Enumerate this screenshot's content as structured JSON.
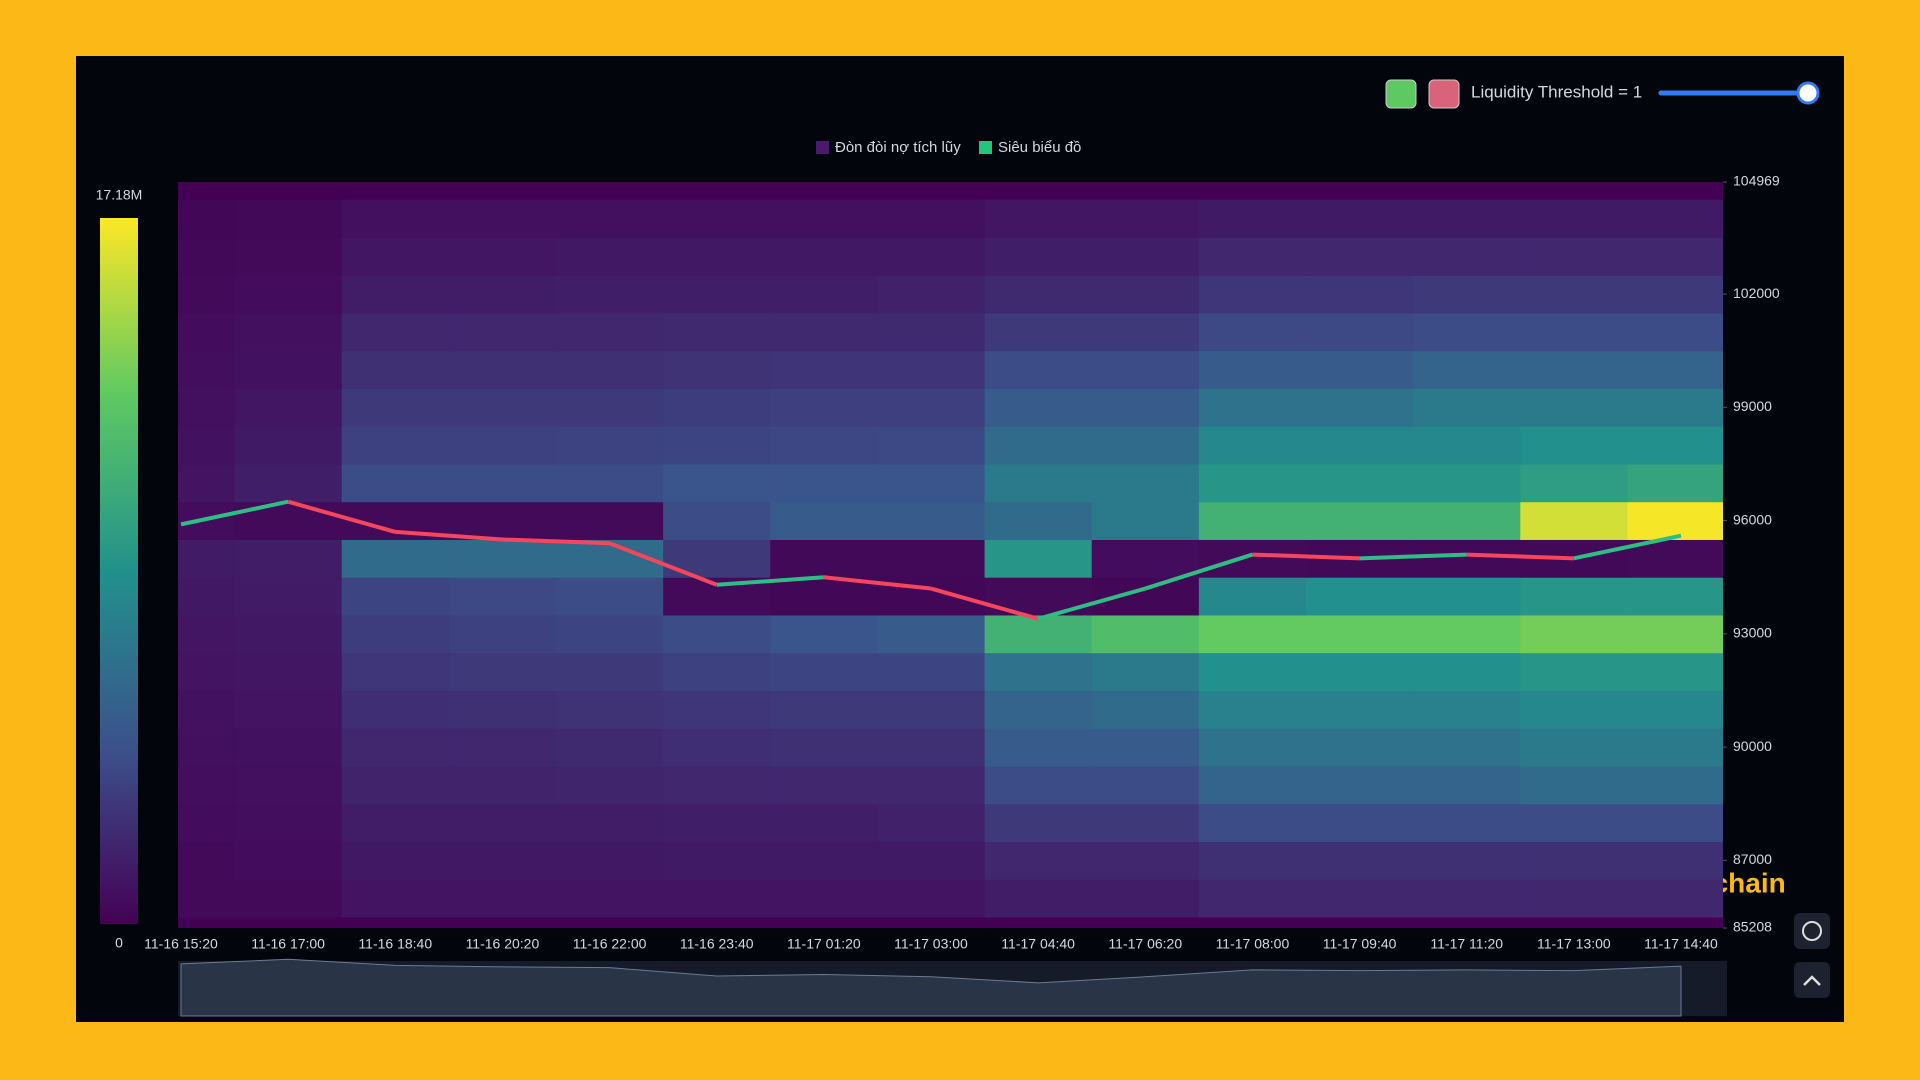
{
  "chart_data": {
    "type": "heatmap",
    "threshold_label": "Liquidity Threshold = 1",
    "watermark": "@az_blockchain",
    "x": [
      "11-16 15:20",
      "11-16 17:00",
      "11-16 18:40",
      "11-16 20:20",
      "11-16 22:00",
      "11-16 23:40",
      "11-17 01:20",
      "11-17 03:00",
      "11-17 04:40",
      "11-17 06:20",
      "11-17 08:00",
      "11-17 09:40",
      "11-17 11:20",
      "11-17 13:00",
      "11-17 14:40"
    ],
    "ylim": [
      85208,
      104969
    ],
    "yticks": [
      85208,
      87000,
      90000,
      93000,
      96000,
      99000,
      102000,
      104969
    ],
    "clim": [
      0,
      17.18
    ],
    "cticks": [
      0,
      {
        "value": 17.18,
        "label": "17.18M"
      }
    ],
    "colorscale": [
      "#440154",
      "#3b528b",
      "#21918c",
      "#5ec962",
      "#fde725"
    ],
    "up_color": "#2ebd85",
    "down_color": "#f6465d",
    "series": [
      {
        "name": "Đòn đòi nợ tích lũy",
        "color": "#4a1a6b",
        "levels": [
          86000,
          87000,
          88000,
          89000,
          90000,
          91000,
          92000,
          93000,
          94000,
          95000,
          96000,
          97000,
          98000,
          99000,
          100000,
          101000,
          102000,
          103000,
          104000
        ],
        "z": [
          [
            0.5,
            0.5,
            1,
            1,
            1,
            1,
            1,
            1,
            1.5,
            1.5,
            2,
            2,
            2,
            2,
            2
          ],
          [
            0.5,
            0.6,
            1.2,
            1.2,
            1.2,
            1.3,
            1.3,
            1.3,
            2,
            2,
            2.5,
            2.5,
            2.5,
            2.5,
            2.5
          ],
          [
            0.6,
            0.7,
            1.5,
            1.5,
            1.5,
            1.6,
            1.6,
            1.7,
            3,
            3,
            4,
            4,
            4,
            4,
            4
          ],
          [
            0.7,
            0.8,
            1.8,
            1.8,
            1.9,
            2,
            2,
            2,
            4,
            4,
            5.5,
            5.5,
            5.5,
            6,
            6
          ],
          [
            0.8,
            0.9,
            2,
            2,
            2.2,
            2.4,
            2.5,
            2.5,
            5,
            5,
            6.5,
            6.5,
            6.5,
            7,
            7
          ],
          [
            0.9,
            1,
            2.4,
            2.5,
            2.6,
            2.8,
            3,
            3,
            5.5,
            6,
            7.5,
            7.5,
            7.5,
            8,
            8
          ],
          [
            1,
            1.1,
            2.8,
            3,
            3,
            3.4,
            3.6,
            3.6,
            6.5,
            7,
            8.5,
            8.5,
            8.5,
            9,
            9
          ],
          [
            1.1,
            1.2,
            3.2,
            3.4,
            3.6,
            4,
            4.5,
            5,
            11,
            12,
            13,
            13,
            13,
            13.5,
            13.5
          ],
          [
            1.2,
            1.4,
            3.6,
            3.8,
            4,
            0.5,
            0.3,
            0.3,
            0.5,
            0.3,
            8,
            8.5,
            8.5,
            9,
            9
          ],
          [
            1.4,
            1.5,
            6,
            6,
            6,
            3,
            0.4,
            0.4,
            9,
            0.6,
            0.5,
            0.4,
            0.4,
            0.4,
            0.5
          ],
          [
            0.6,
            0.5,
            0.5,
            0.5,
            0.5,
            4,
            5,
            5,
            6,
            7,
            11,
            11,
            11,
            16,
            17
          ],
          [
            1,
            1.6,
            4,
            4,
            4,
            4.5,
            4.5,
            4.5,
            7,
            7,
            9,
            9,
            9,
            9.5,
            10
          ],
          [
            0.9,
            1.3,
            3.4,
            3.4,
            3.5,
            3.6,
            3.7,
            3.8,
            6,
            6,
            8,
            8,
            8,
            8.5,
            8.5
          ],
          [
            0.8,
            1.1,
            3,
            3,
            3,
            3.2,
            3.3,
            3.3,
            5,
            5,
            6.5,
            6.5,
            7,
            7,
            7
          ],
          [
            0.7,
            0.9,
            2.5,
            2.5,
            2.5,
            2.6,
            2.7,
            2.7,
            4,
            4,
            5,
            5,
            5.5,
            5.5,
            5.5
          ],
          [
            0.6,
            0.8,
            2,
            2,
            2,
            2.1,
            2.1,
            2.2,
            3,
            3,
            3.8,
            3.8,
            4,
            4,
            4
          ],
          [
            0.5,
            0.6,
            1.5,
            1.5,
            1.6,
            1.6,
            1.6,
            1.7,
            2.2,
            2.2,
            2.8,
            2.8,
            3,
            3,
            3
          ],
          [
            0.4,
            0.5,
            1.1,
            1.1,
            1.2,
            1.2,
            1.2,
            1.2,
            1.6,
            1.6,
            2,
            2,
            2,
            2,
            2
          ],
          [
            0.3,
            0.4,
            0.8,
            0.8,
            0.8,
            0.8,
            0.8,
            0.8,
            1.1,
            1.1,
            1.3,
            1.3,
            1.3,
            1.3,
            1.3
          ]
        ]
      },
      {
        "name": "Siêu biểu đồ",
        "color": "#20c77a",
        "values": [
          95900,
          96500,
          95700,
          95500,
          95400,
          94300,
          94500,
          94200,
          93400,
          94200,
          95100,
          95000,
          95100,
          95000,
          95600
        ]
      }
    ]
  }
}
